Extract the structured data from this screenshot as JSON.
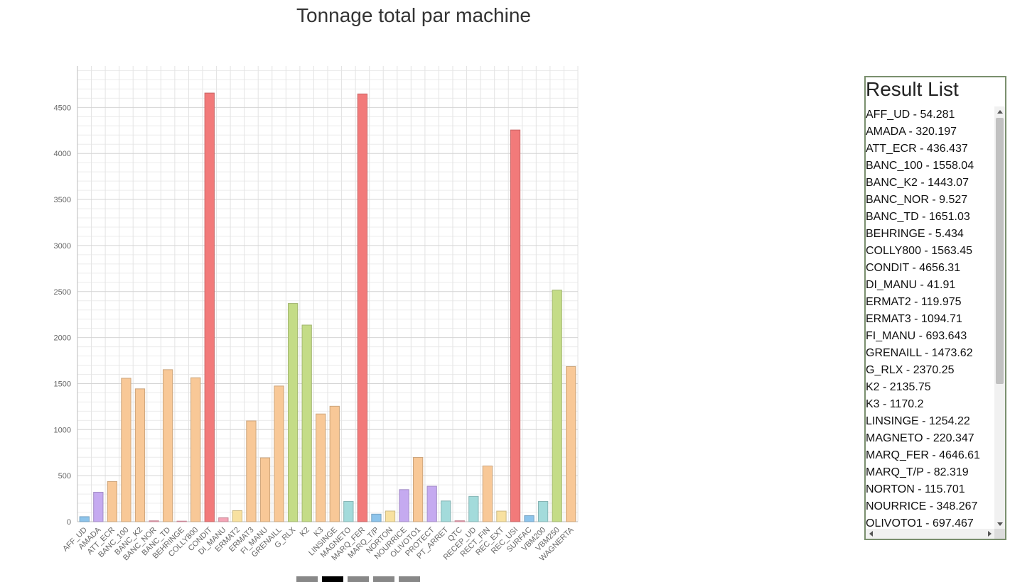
{
  "title": "Tonnage total par machine",
  "result_list": {
    "title": "Result List",
    "items": [
      "AFF_UD - 54.281",
      "AMADA - 320.197",
      "ATT_ECR - 436.437",
      "BANC_100 - 1558.04",
      "BANC_K2 - 1443.07",
      "BANC_NOR - 9.527",
      "BANC_TD - 1651.03",
      "BEHRINGE - 5.434",
      "COLLY800 - 1563.45",
      "CONDIT - 4656.31",
      "DI_MANU - 41.91",
      "ERMAT2 - 119.975",
      "ERMAT3 - 1094.71",
      "FI_MANU - 693.643",
      "GRENAILL - 1473.62",
      "G_RLX - 2370.25",
      "K2 - 2135.75",
      "K3 - 1170.2",
      "LINSINGE - 1254.22",
      "MAGNETO - 220.347",
      "MARQ_FER - 4646.61",
      "MARQ_T/P - 82.319",
      "NORTON - 115.701",
      "NOURRICE - 348.267",
      "OLIVOTO1 - 697.467"
    ]
  },
  "colors": {
    "blue": "#90c8f0",
    "purple": "#c9adf5",
    "orange": "#fdcc9a",
    "pink": "#f9a8bb",
    "red": "#f77c7c",
    "yellow": "#fde6a3",
    "green": "#c8e08a",
    "teal": "#a6dfdf"
  },
  "chart_data": {
    "type": "bar",
    "title": "Tonnage total par machine",
    "xlabel": "",
    "ylabel": "",
    "ylim": [
      0,
      4950
    ],
    "yticks": [
      0,
      500,
      1000,
      1500,
      2000,
      2500,
      3000,
      3500,
      4000,
      4500
    ],
    "grid": true,
    "categories": [
      "AFF_UD",
      "AMADA",
      "ATT_ECR",
      "BANC_100",
      "BANC_K2",
      "BANC_NOR",
      "BANC_TD",
      "BEHRINGE",
      "COLLY800",
      "CONDIT",
      "DI_MANU",
      "ERMAT2",
      "ERMAT3",
      "FI_MANU",
      "GRENAILL",
      "G_RLX",
      "K2",
      "K3",
      "LINSINGE",
      "MAGNETO",
      "MARQ_FER",
      "MARQ_T/P",
      "NORTON",
      "NOURRICE",
      "OLIVOTO1",
      "PROTECT",
      "PT_ARRET",
      "QTC",
      "RECEP_UD",
      "RECT_FIN",
      "REC_EXT",
      "REC_USI",
      "SURFAC",
      "VBM200",
      "VBM250",
      "WAGNERTA"
    ],
    "values": [
      54.281,
      320.197,
      436.437,
      1558.04,
      1443.07,
      9.527,
      1651.03,
      5.434,
      1563.45,
      4656.31,
      41.91,
      119.975,
      1094.71,
      693.643,
      1473.62,
      2370.25,
      2135.75,
      1170.2,
      1254.22,
      220.347,
      4646.61,
      82.319,
      115.701,
      348.267,
      697.467,
      385,
      225,
      10,
      275,
      605,
      115,
      4255,
      65,
      220,
      2515,
      1685
    ],
    "bar_colors": [
      "blue",
      "purple",
      "orange",
      "orange",
      "orange",
      "pink",
      "orange",
      "pink",
      "orange",
      "red",
      "pink",
      "yellow",
      "orange",
      "orange",
      "orange",
      "green",
      "green",
      "orange",
      "orange",
      "teal",
      "red",
      "blue",
      "yellow",
      "purple",
      "orange",
      "purple",
      "teal",
      "pink",
      "teal",
      "orange",
      "yellow",
      "red",
      "blue",
      "teal",
      "green",
      "orange"
    ]
  }
}
